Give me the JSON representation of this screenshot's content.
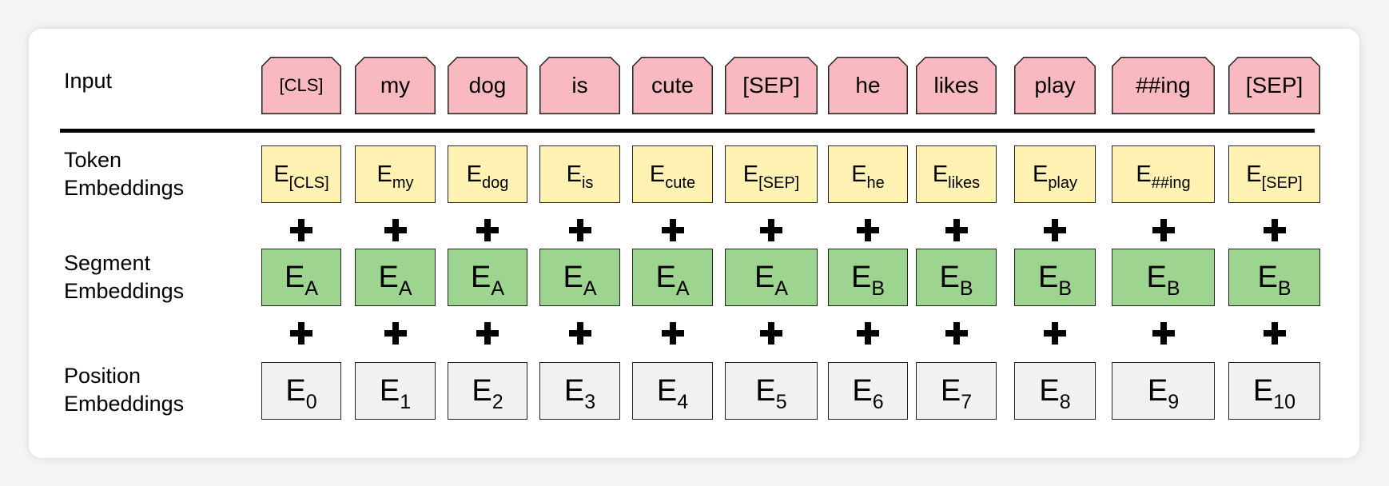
{
  "rows": {
    "input": "Input",
    "token": [
      "Token",
      "Embeddings"
    ],
    "segment": [
      "Segment",
      "Embeddings"
    ],
    "position": [
      "Position",
      "Embeddings"
    ]
  },
  "embedding_symbol": "E",
  "tokens": [
    {
      "input": "[CLS]",
      "token_sub": "[CLS]",
      "segment_sub": "A",
      "position_sub": "0"
    },
    {
      "input": "my",
      "token_sub": "my",
      "segment_sub": "A",
      "position_sub": "1"
    },
    {
      "input": "dog",
      "token_sub": "dog",
      "segment_sub": "A",
      "position_sub": "2"
    },
    {
      "input": "is",
      "token_sub": "is",
      "segment_sub": "A",
      "position_sub": "3"
    },
    {
      "input": "cute",
      "token_sub": "cute",
      "segment_sub": "A",
      "position_sub": "4"
    },
    {
      "input": "[SEP]",
      "token_sub": "[SEP]",
      "segment_sub": "A",
      "position_sub": "5"
    },
    {
      "input": "he",
      "token_sub": "he",
      "segment_sub": "B",
      "position_sub": "6"
    },
    {
      "input": "likes",
      "token_sub": "likes",
      "segment_sub": "B",
      "position_sub": "7"
    },
    {
      "input": "play",
      "token_sub": "play",
      "segment_sub": "B",
      "position_sub": "8"
    },
    {
      "input": "##ing",
      "token_sub": "##ing",
      "segment_sub": "B",
      "position_sub": "9"
    },
    {
      "input": "[SEP]",
      "token_sub": "[SEP]",
      "segment_sub": "B",
      "position_sub": "10"
    }
  ],
  "colors": {
    "input_fill": "#f8b9c0",
    "token_fill": "#fff2b3",
    "segment_fill": "#9dd48f",
    "position_fill": "#f1f1f1"
  }
}
